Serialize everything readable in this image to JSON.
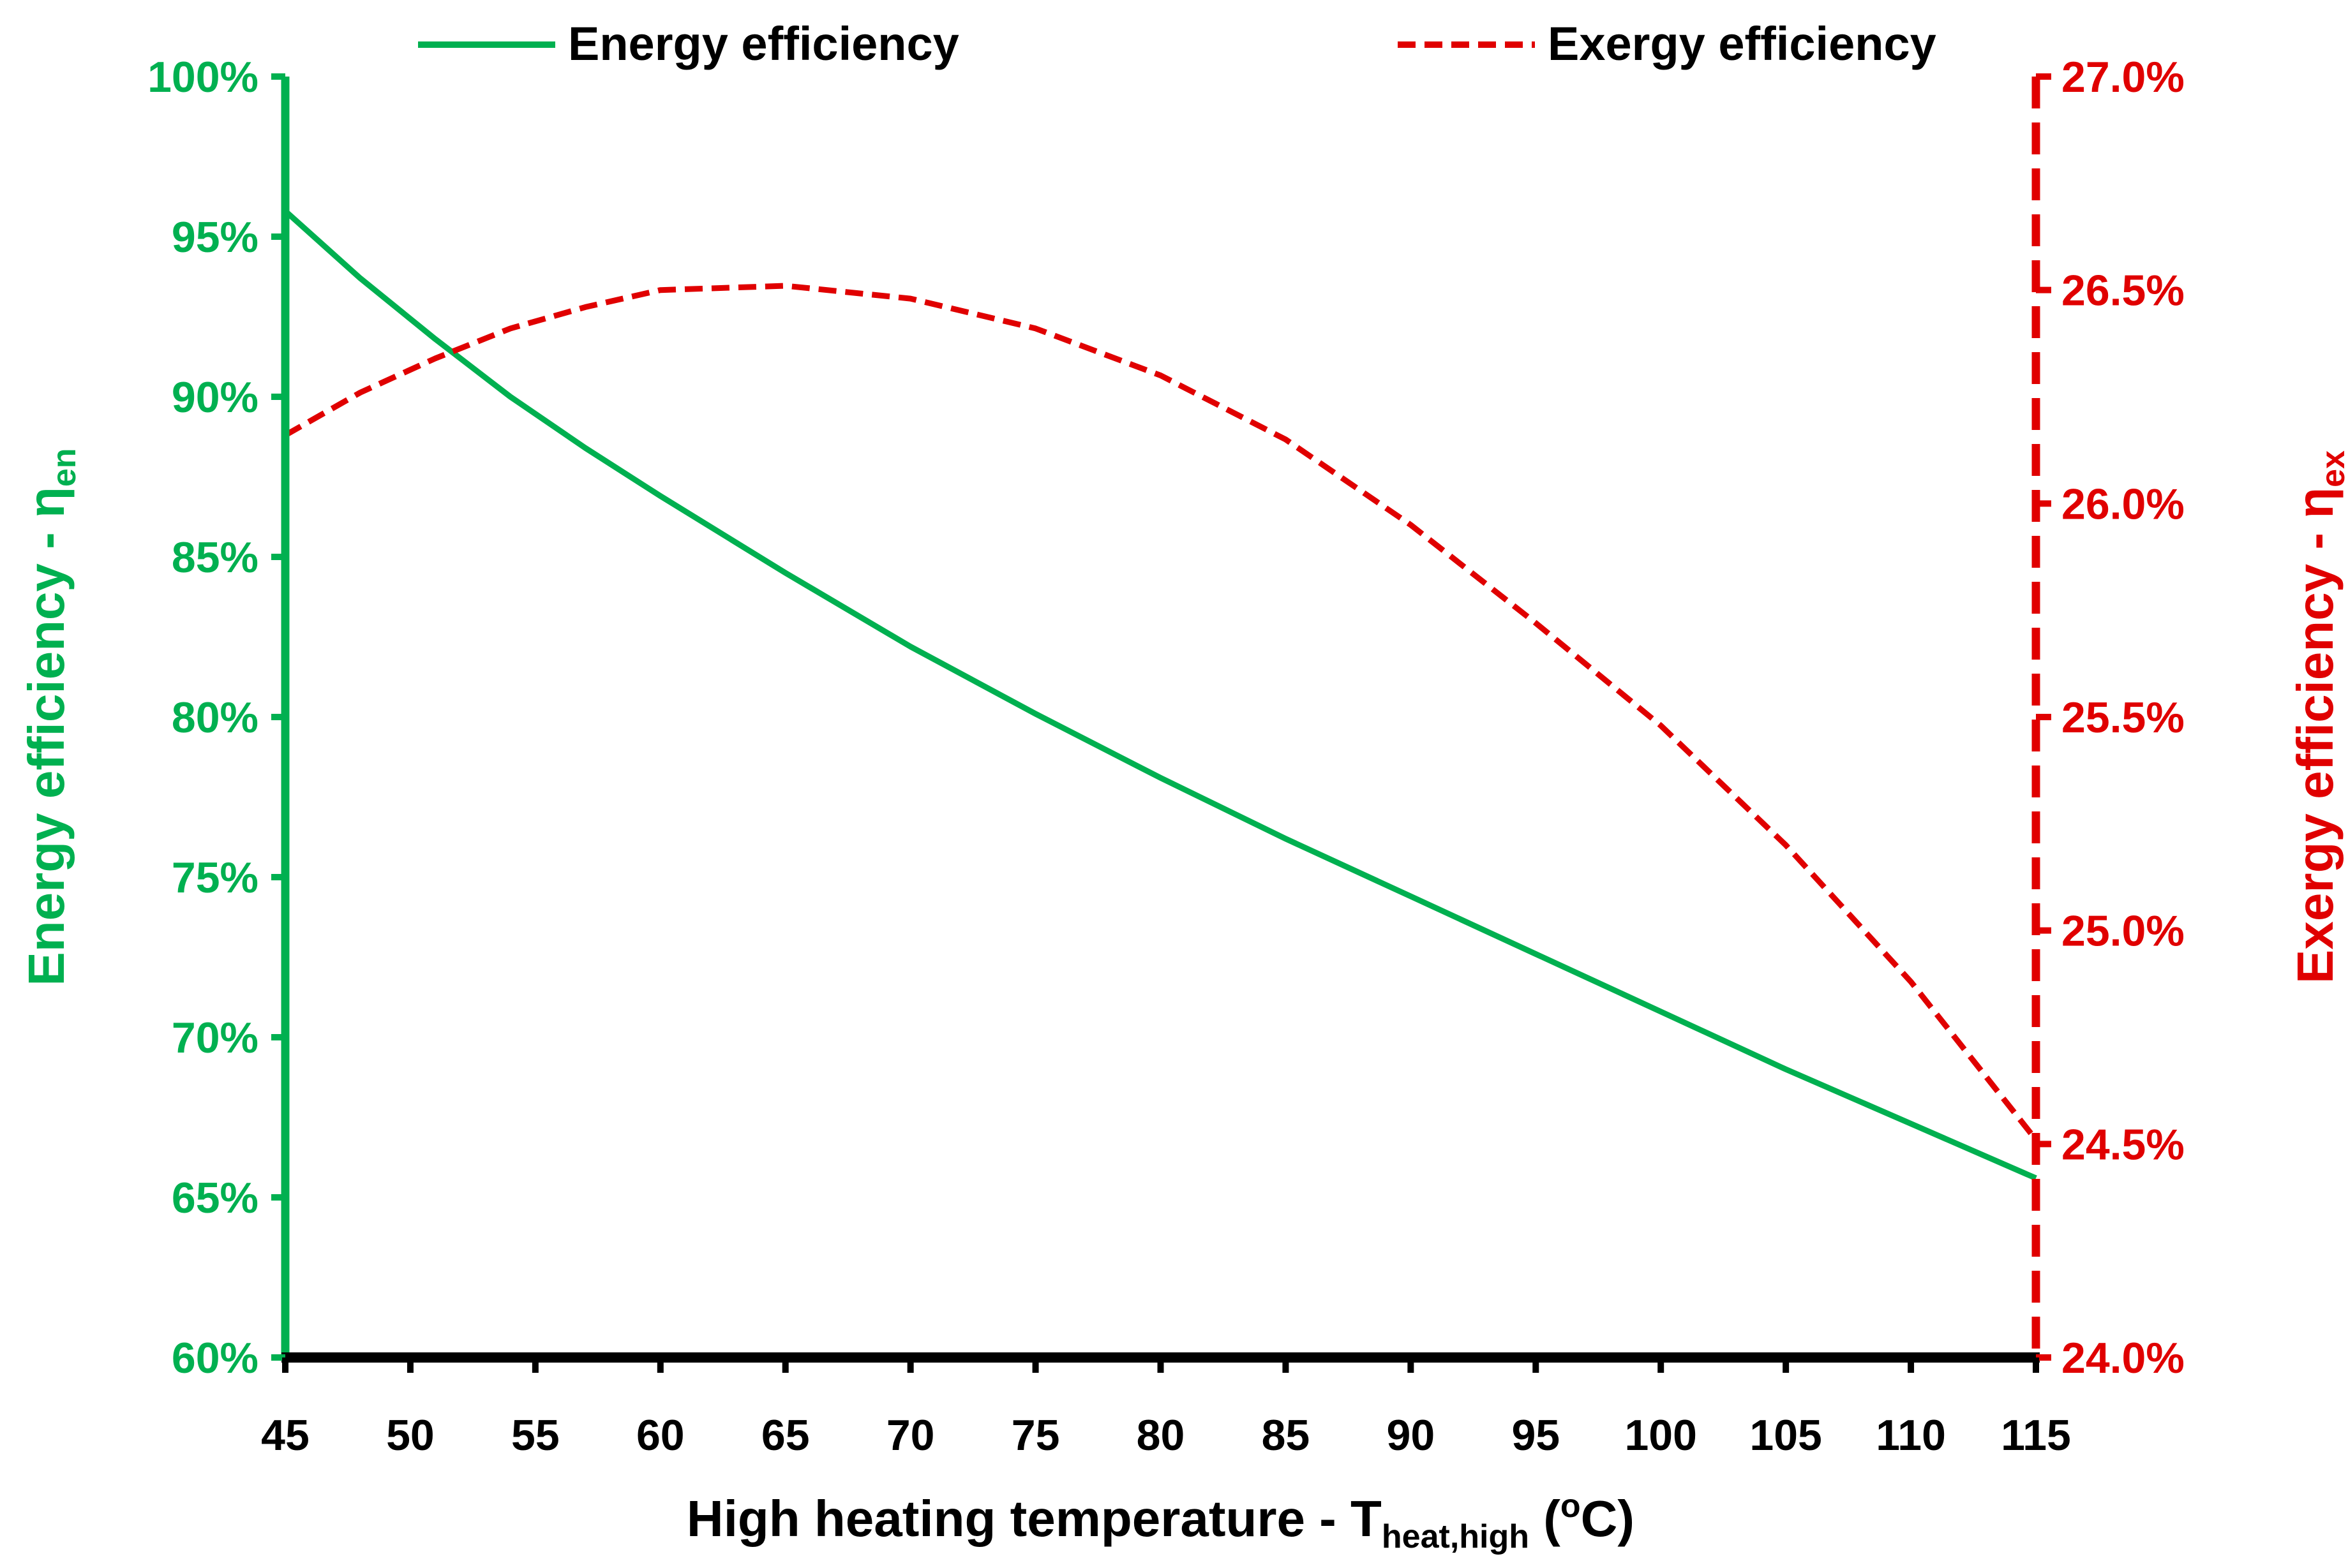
{
  "chart_data": {
    "type": "line",
    "title": "",
    "xlabel": {
      "main": "High heating temperature - T",
      "sub": "heat,high",
      "post1": " (",
      "sup": "o",
      "post2": "C)"
    },
    "ylabel_left": {
      "main": "Energy efficiency - η",
      "sub": "en"
    },
    "ylabel_right": {
      "main": "Exergy efficiency - η",
      "sub": "ex"
    },
    "x": [
      45,
      48,
      51,
      54,
      57,
      60,
      65,
      70,
      75,
      80,
      85,
      90,
      95,
      100,
      105,
      110,
      115
    ],
    "xlim": [
      45,
      115
    ],
    "xticks": [
      45,
      50,
      55,
      60,
      65,
      70,
      75,
      80,
      85,
      90,
      95,
      100,
      105,
      110,
      115
    ],
    "xtick_labels": [
      "45",
      "50",
      "55",
      "60",
      "65",
      "70",
      "75",
      "80",
      "85",
      "90",
      "95",
      "100",
      "105",
      "110",
      "115"
    ],
    "left_axis": {
      "ylim": [
        60,
        100
      ],
      "ticks": [
        60,
        65,
        70,
        75,
        80,
        85,
        90,
        95,
        100
      ],
      "tick_labels": [
        "60%",
        "65%",
        "70%",
        "75%",
        "80%",
        "85%",
        "90%",
        "95%",
        "100%"
      ],
      "color": "#00b050"
    },
    "right_axis": {
      "ylim": [
        24.0,
        27.0
      ],
      "ticks": [
        24.0,
        24.5,
        25.0,
        25.5,
        26.0,
        26.5,
        27.0
      ],
      "tick_labels": [
        "24.0%",
        "24.5%",
        "25.0%",
        "25.5%",
        "26.0%",
        "26.5%",
        "27.0%"
      ],
      "color": "#e00000"
    },
    "series": [
      {
        "name": "Energy efficiency",
        "axis": "left",
        "style": "solid",
        "color": "#00b050",
        "values": [
          95.8,
          93.7,
          91.8,
          90.0,
          88.4,
          86.9,
          84.5,
          82.2,
          80.1,
          78.1,
          76.2,
          74.4,
          72.6,
          70.8,
          69.0,
          67.3,
          65.6
        ]
      },
      {
        "name": "Exergy efficiency",
        "axis": "right",
        "style": "dashed",
        "color": "#e00000",
        "values": [
          26.16,
          26.26,
          26.34,
          26.41,
          26.46,
          26.5,
          26.51,
          26.48,
          26.41,
          26.3,
          26.15,
          25.95,
          25.72,
          25.48,
          25.2,
          24.88,
          24.51
        ]
      }
    ],
    "legend": "top"
  }
}
